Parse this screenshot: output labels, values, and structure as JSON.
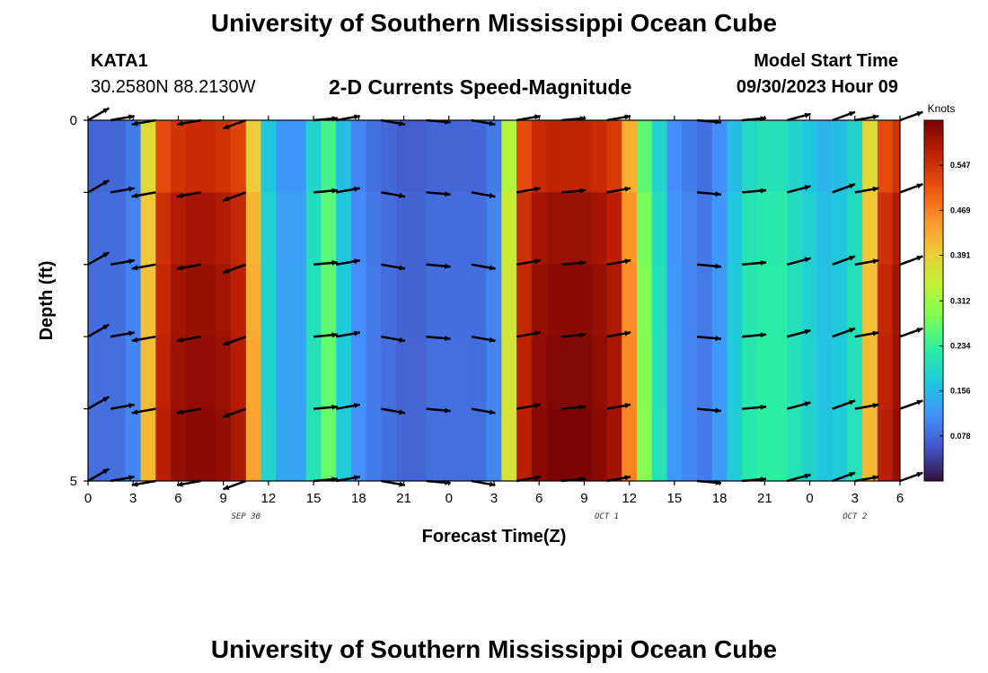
{
  "header": {
    "title": "University of Southern Mississippi Ocean Cube",
    "station_id": "KATA1",
    "station_location": "30.2580N  88.2130W",
    "plot_title": "2-D Currents Speed-Magnitude",
    "model_start_label": "Model Start Time",
    "model_start_time": "09/30/2023 Hour 09"
  },
  "footer": {
    "title": "University of Southern Mississippi Ocean Cube"
  },
  "chart_data": {
    "type": "heatmap",
    "title": "2-D Currents Speed-Magnitude",
    "xlabel": "Forecast Time(Z)",
    "ylabel": "Depth (ft)",
    "x_ticks": [
      "0",
      "3",
      "6",
      "9",
      "12",
      "15",
      "18",
      "21",
      "0",
      "3",
      "6",
      "9",
      "12",
      "15",
      "18",
      "21",
      "0",
      "3",
      "6"
    ],
    "date_labels": [
      "SEP 30",
      "OCT 1",
      "OCT 2"
    ],
    "y_ticks": [
      "0",
      "5"
    ],
    "ylim": [
      0,
      5
    ],
    "colorbar": {
      "unit": "Knots",
      "range": [
        0,
        0.625
      ],
      "tick_values": [
        "0.078",
        "0.156",
        "0.234",
        "0.312",
        "0.391",
        "0.469",
        "0.547"
      ],
      "colors": [
        "#30123b",
        "#4454c4",
        "#4490fe",
        "#1fc8de",
        "#29efa2",
        "#7dff56",
        "#c1f334",
        "#f1ca3a",
        "#fe922a",
        "#ea4f0d",
        "#be2102",
        "#7a0403"
      ]
    },
    "time_hours": [
      0,
      1,
      2,
      3,
      4,
      5,
      6,
      7,
      8,
      9,
      10,
      11,
      12,
      13,
      14,
      15,
      16,
      17,
      18,
      19,
      20,
      21,
      22,
      23,
      24,
      25,
      26,
      27,
      28,
      29,
      30,
      31,
      32,
      33,
      34,
      35,
      36,
      37,
      38,
      39,
      40,
      41,
      42,
      43,
      44,
      45,
      46,
      47,
      48,
      49,
      50,
      51,
      52,
      53,
      54
    ],
    "speed_knots_by_hour": [
      0.08,
      0.08,
      0.08,
      0.1,
      0.4,
      0.55,
      0.58,
      0.59,
      0.59,
      0.58,
      0.56,
      0.42,
      0.18,
      0.13,
      0.13,
      0.2,
      0.26,
      0.17,
      0.11,
      0.09,
      0.08,
      0.07,
      0.07,
      0.08,
      0.08,
      0.08,
      0.08,
      0.1,
      0.35,
      0.55,
      0.59,
      0.6,
      0.6,
      0.6,
      0.59,
      0.57,
      0.45,
      0.28,
      0.2,
      0.12,
      0.1,
      0.09,
      0.12,
      0.17,
      0.21,
      0.22,
      0.22,
      0.2,
      0.18,
      0.16,
      0.17,
      0.2,
      0.4,
      0.55,
      0.58
    ],
    "depth_speed_factor": [
      0.94,
      1.0,
      1.02,
      1.03,
      1.04
    ],
    "vector_depths_ft": [
      0,
      1,
      2,
      3,
      4,
      5
    ],
    "vector_times_hours": [
      0,
      1.5,
      4.5,
      7.5,
      10.5,
      15,
      16.5,
      19.5,
      22.5,
      25.5,
      28.5,
      31.5,
      34.5,
      40.5,
      43.5,
      46.5,
      49.5,
      51,
      54
    ],
    "vector_direction_deg": [
      60,
      80,
      260,
      260,
      250,
      85,
      80,
      100,
      95,
      100,
      80,
      85,
      80,
      95,
      85,
      75,
      70,
      80,
      70
    ]
  }
}
